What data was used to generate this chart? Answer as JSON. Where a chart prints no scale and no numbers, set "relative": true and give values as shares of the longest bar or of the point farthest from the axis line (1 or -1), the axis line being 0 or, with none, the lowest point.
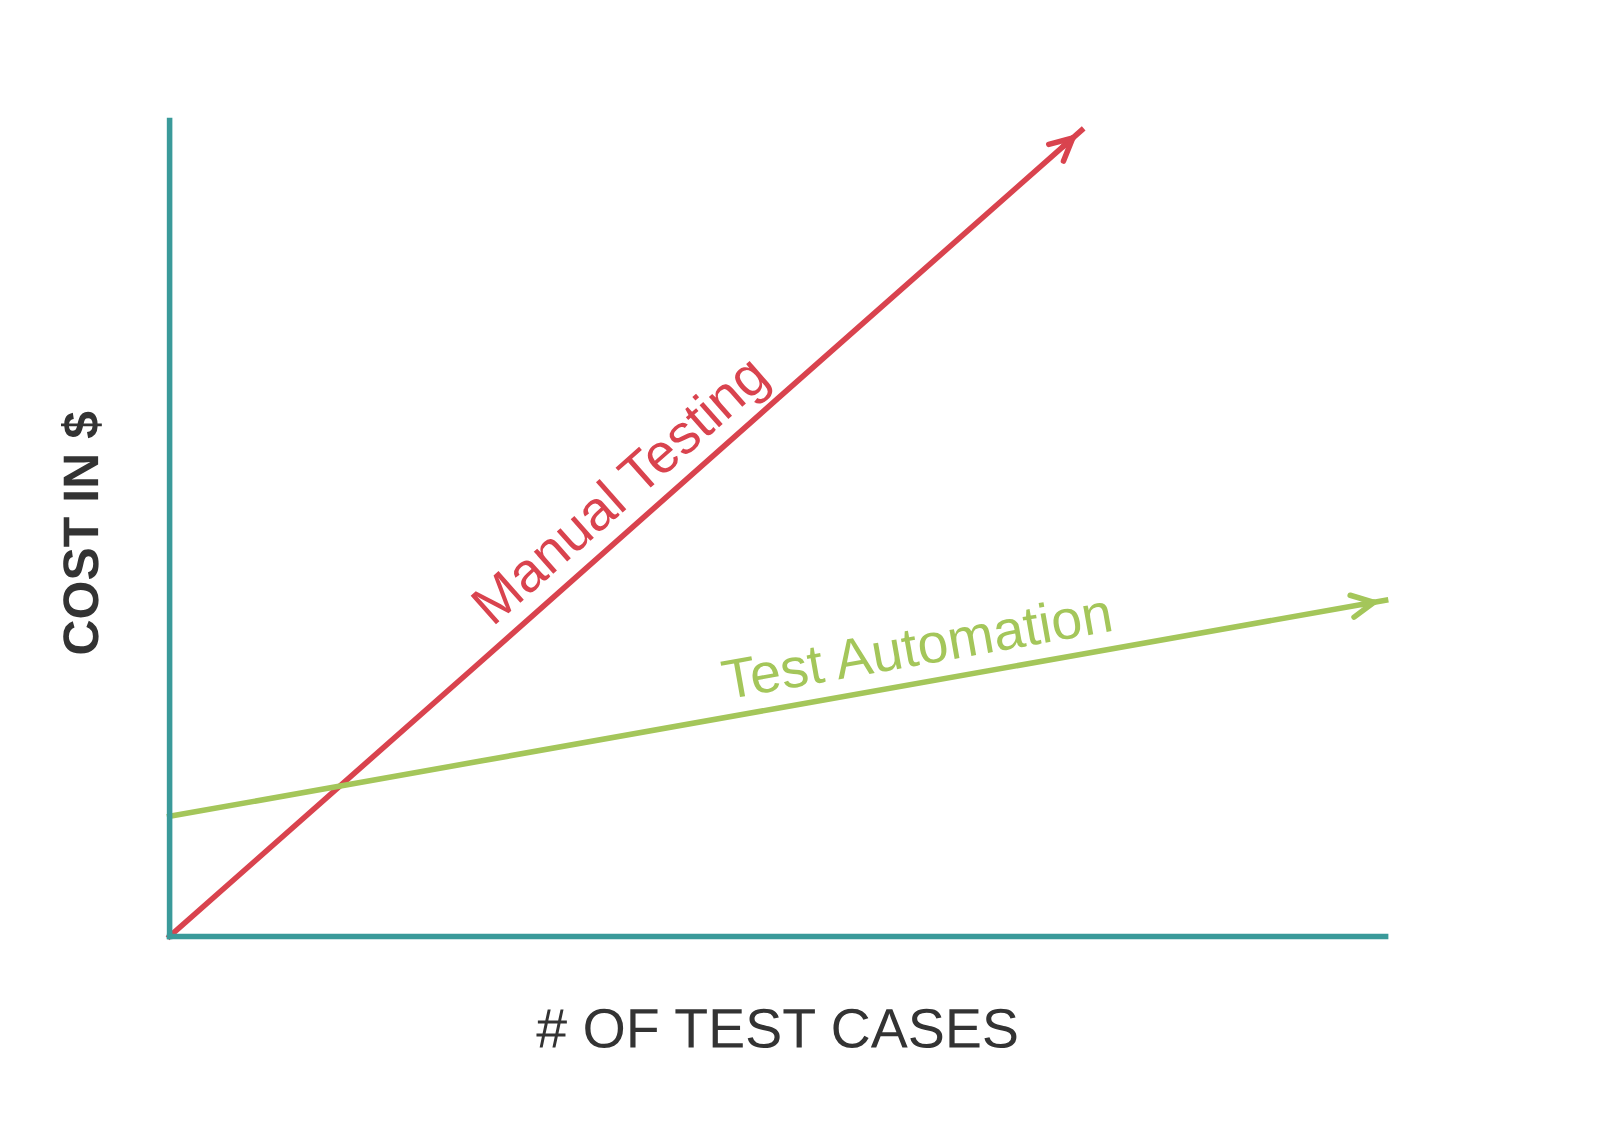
{
  "chart_data": {
    "type": "line",
    "relative": true,
    "xlabel": "# OF TEST CASES",
    "ylabel": "COST IN $",
    "legend": false,
    "marker": "none",
    "line_style": "solid",
    "categories": [
      null,
      null,
      null,
      null,
      null
    ],
    "series": [
      {
        "name": "Manual Testing",
        "color": "#d9434e",
        "values": [
          0,
          0.333,
          0.667,
          1,
          null
        ]
      },
      {
        "name": "Test Automation",
        "color": "#a4c65a",
        "values": [
          0.149,
          0.216,
          0.283,
          0.35,
          0.417
        ]
      }
    ]
  }
}
